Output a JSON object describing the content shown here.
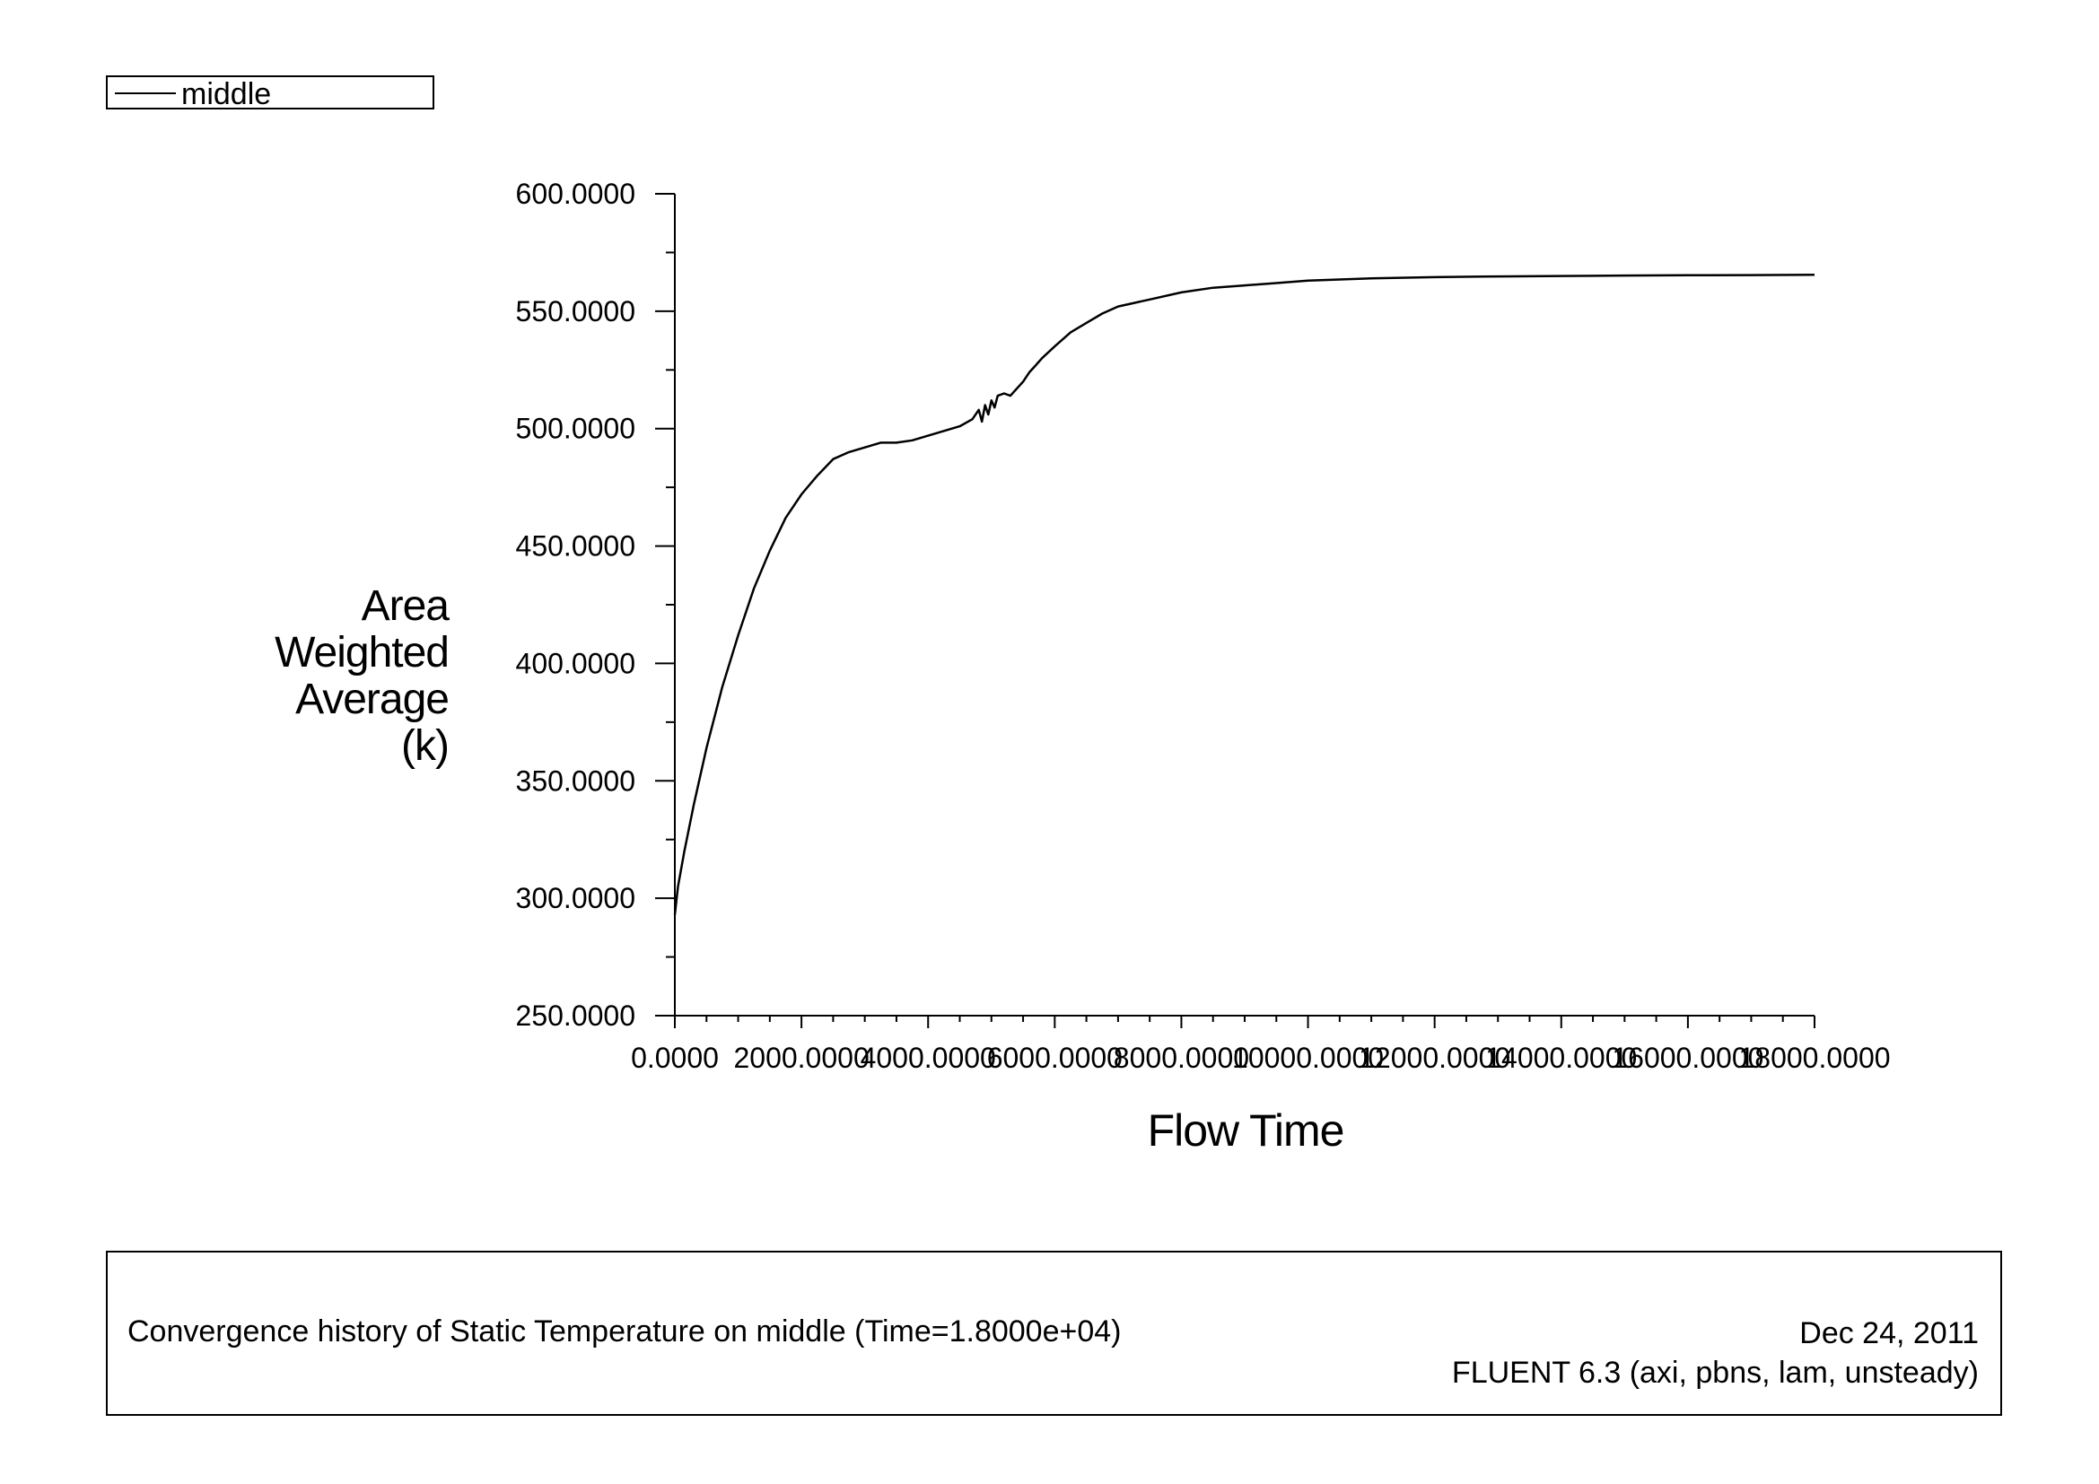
{
  "chart_data": {
    "type": "line",
    "title": "Convergence history of Static Temperature on middle  (Time=1.8000e+04)",
    "xlabel": "Flow Time",
    "ylabel_lines": [
      "Area",
      "Weighted",
      "Average",
      "(k)"
    ],
    "xlim": [
      0,
      18000
    ],
    "ylim": [
      250,
      600
    ],
    "x_ticks": [
      0,
      2000,
      4000,
      6000,
      8000,
      10000,
      12000,
      14000,
      16000,
      18000
    ],
    "x_tick_labels": [
      "0.0000",
      "2000.0000",
      "4000.0000",
      "6000.0000",
      "8000.0000",
      "10000.0000",
      "12000.0000",
      "14000.0000",
      "16000.0000",
      "18000.0000"
    ],
    "y_ticks": [
      250,
      300,
      350,
      400,
      450,
      500,
      550,
      600
    ],
    "y_tick_labels": [
      "250.0000",
      "300.0000",
      "350.0000",
      "400.0000",
      "450.0000",
      "500.0000",
      "550.0000",
      "600.0000"
    ],
    "legend_position": "top-left",
    "series": [
      {
        "name": "middle",
        "color": "#000000",
        "x": [
          0,
          50,
          150,
          300,
          500,
          750,
          1000,
          1250,
          1500,
          1750,
          2000,
          2250,
          2500,
          2750,
          3000,
          3250,
          3500,
          3750,
          4000,
          4250,
          4500,
          4700,
          4800,
          4850,
          4900,
          4950,
          5000,
          5050,
          5100,
          5200,
          5300,
          5400,
          5500,
          5600,
          5700,
          5800,
          6000,
          6250,
          6500,
          6750,
          7000,
          7500,
          8000,
          8500,
          9000,
          9500,
          10000,
          11000,
          12000,
          13000,
          14000,
          15000,
          16000,
          17000,
          18000
        ],
        "y": [
          293,
          305,
          320,
          340,
          364,
          390,
          412,
          432,
          448,
          462,
          472,
          480,
          487,
          490,
          492,
          494,
          494,
          495,
          497,
          499,
          501,
          504,
          508,
          503,
          510,
          506,
          512,
          509,
          514,
          515,
          514,
          517,
          520,
          524,
          527,
          530,
          535,
          541,
          545,
          549,
          552,
          555,
          558,
          560,
          561,
          562,
          563,
          564,
          564.5,
          564.8,
          565,
          565.2,
          565.3,
          565.4,
          565.5
        ]
      }
    ]
  },
  "footer": {
    "caption": "Convergence history of Static Temperature on middle  (Time=1.8000e+04)",
    "date": "Dec 24, 2011",
    "software": "FLUENT 6.3 (axi, pbns, lam, unsteady)"
  }
}
